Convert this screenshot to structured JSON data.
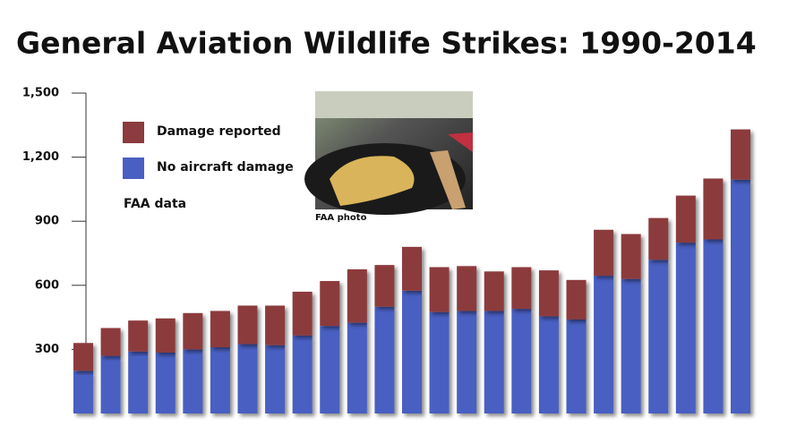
{
  "chart_data": {
    "type": "stacked_bar",
    "title": "General Aviation Wildlife Strikes: 1990-2014",
    "categories": [
      null,
      null,
      null,
      null,
      null,
      null,
      null,
      null,
      null,
      null,
      null,
      null,
      null,
      null,
      null,
      null,
      null,
      null,
      null,
      null,
      null,
      null,
      null,
      null,
      null
    ],
    "series": [
      {
        "name": "No aircraft damage",
        "color": "#4a5fc2",
        "values": [
          200,
          270,
          290,
          285,
          300,
          310,
          325,
          320,
          365,
          410,
          425,
          500,
          575,
          475,
          480,
          480,
          490,
          455,
          440,
          645,
          630,
          720,
          800,
          815,
          1095
        ]
      },
      {
        "name": "Damage reported",
        "color": "#8c3b3e",
        "values": [
          130,
          130,
          145,
          160,
          170,
          170,
          180,
          185,
          205,
          210,
          250,
          195,
          205,
          210,
          210,
          185,
          195,
          215,
          185,
          215,
          210,
          195,
          220,
          285,
          235
        ]
      }
    ],
    "ylim": [
      0,
      1500
    ],
    "yticks": [
      300,
      600,
      900,
      {
        "value": 1200,
        "label": "1,200"
      },
      {
        "value": 1500,
        "label": "1,500"
      }
    ],
    "legend": "top-left",
    "annotations": [
      "FAA data",
      "FAA photo"
    ]
  }
}
